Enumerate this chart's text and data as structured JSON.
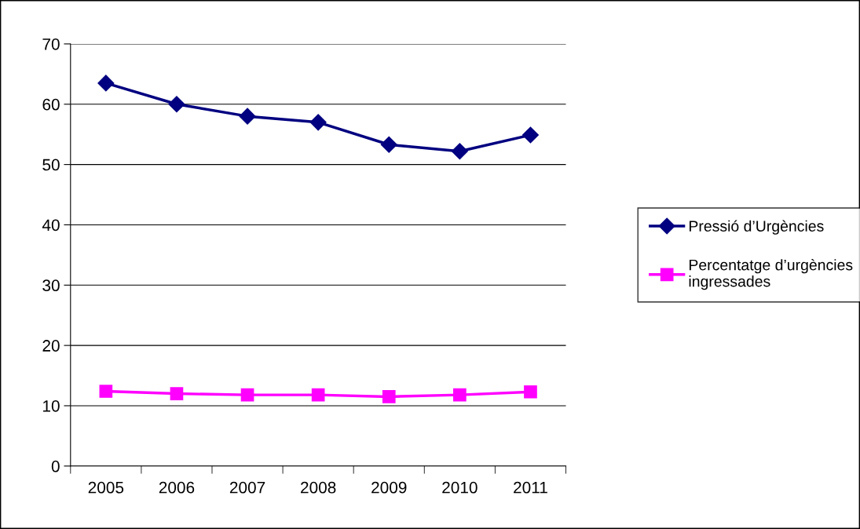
{
  "chart_data": {
    "type": "line",
    "categories": [
      "2005",
      "2006",
      "2007",
      "2008",
      "2009",
      "2010",
      "2011"
    ],
    "series": [
      {
        "name": "Pressió d’Urgències",
        "color": "#000080",
        "marker": "diamond",
        "values": [
          63.5,
          60.0,
          58.0,
          57.0,
          53.3,
          52.2,
          54.9
        ]
      },
      {
        "name": "Percentatge d’urgències\ningressades",
        "color": "#ff00ff",
        "marker": "square",
        "values": [
          12.4,
          12.0,
          11.8,
          11.8,
          11.5,
          11.8,
          12.3
        ]
      }
    ],
    "ylim": [
      0,
      70
    ],
    "yticks": [
      0,
      10,
      20,
      30,
      40,
      50,
      60,
      70
    ],
    "grid": "y",
    "legend": "right",
    "line_style": "solid"
  }
}
